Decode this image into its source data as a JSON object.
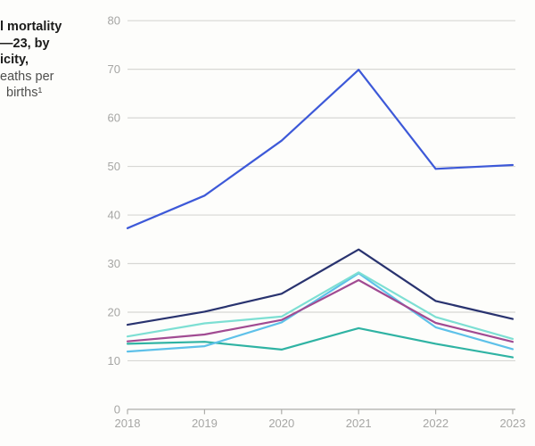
{
  "title": {
    "lines": [
      {
        "text": "l mortality",
        "bold": true
      },
      {
        "text": "—23, by",
        "bold": true
      },
      {
        "text": "icity,",
        "bold": true
      },
      {
        "text": "eaths per",
        "bold": false
      },
      {
        "text": "births¹",
        "bold": false
      }
    ]
  },
  "chart_data": {
    "type": "line",
    "title_fragment_visible": "l mortality —23, by icity, eaths per births¹",
    "x": [
      2018,
      2019,
      2020,
      2021,
      2022,
      2023
    ],
    "series": [
      {
        "name": "series-green-teal",
        "color": "#2fb3a3",
        "values": [
          13.5,
          13.9,
          12.3,
          16.7,
          13.5,
          10.7
        ]
      },
      {
        "name": "series-cyan",
        "color": "#5ec1e9",
        "values": [
          11.9,
          13.0,
          17.9,
          28.0,
          16.9,
          12.4
        ]
      },
      {
        "name": "series-magenta",
        "color": "#a14b92",
        "values": [
          14.0,
          15.4,
          18.4,
          26.6,
          17.8,
          13.9
        ]
      },
      {
        "name": "series-aquamarine",
        "color": "#7ddfd3",
        "values": [
          15.0,
          17.7,
          19.1,
          28.2,
          19.0,
          14.5
        ]
      },
      {
        "name": "series-navy",
        "color": "#29336f",
        "values": [
          17.4,
          20.1,
          23.8,
          32.9,
          22.3,
          18.6
        ]
      },
      {
        "name": "series-royal-blue",
        "color": "#3d59d8",
        "values": [
          37.3,
          44.0,
          55.3,
          69.9,
          49.5,
          50.3
        ]
      }
    ],
    "x_tick_labels": [
      "2018",
      "2019",
      "2020",
      "2021",
      "2022",
      "2023"
    ],
    "y_axis": {
      "min": 0,
      "max": 80,
      "tick_step": 10,
      "tick_labels": [
        "0",
        "10",
        "20",
        "30",
        "40",
        "50",
        "60",
        "70",
        "80"
      ]
    },
    "grid": true,
    "legend": "none",
    "colors": {
      "gridline": "#d7d7d4",
      "axis_line": "#adadaa",
      "tick_label": "#a6a6a4"
    }
  }
}
